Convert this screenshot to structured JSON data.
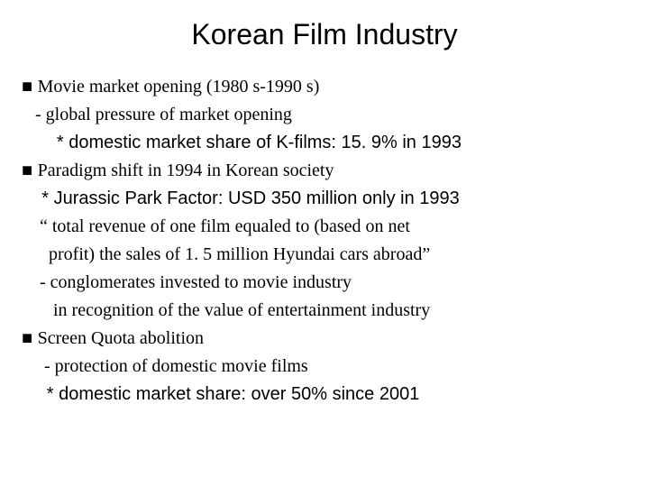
{
  "title": "Korean Film Industry",
  "title_fontsize": 32,
  "body_fontsize": 20,
  "line_height": 1.55,
  "background_color": "#ffffff",
  "text_color": "#000000",
  "lines": [
    {
      "prefix": "■ ",
      "text": "Movie market opening (1980 s-1990 s)",
      "font": "serif",
      "indent": 0
    },
    {
      "prefix": "",
      "text": "   - global pressure of market opening",
      "font": "serif",
      "indent": 0
    },
    {
      "prefix": "",
      "text": "       * domestic market share of K-films: 15. 9% in 1993",
      "font": "sans",
      "indent": 0
    },
    {
      "prefix": "■ ",
      "text": "Paradigm shift in 1994 in Korean society",
      "font": "serif",
      "indent": 0
    },
    {
      "prefix": "",
      "text": "    * Jurassic Park Factor: USD 350 million only in 1993",
      "font": "sans",
      "indent": 0
    },
    {
      "prefix": "",
      "text": "    “ total revenue of one film equaled to (based on net",
      "font": "serif",
      "indent": 0
    },
    {
      "prefix": "",
      "text": "      profit) the sales of 1. 5 million Hyundai cars abroad”",
      "font": "serif",
      "indent": 0
    },
    {
      "prefix": "",
      "text": "    - conglomerates invested to movie industry",
      "font": "serif",
      "indent": 0
    },
    {
      "prefix": "",
      "text": "       in recognition of the value of entertainment industry",
      "font": "serif",
      "indent": 0
    },
    {
      "prefix": "■ ",
      "text": "Screen Quota abolition",
      "font": "serif",
      "indent": 0
    },
    {
      "prefix": "",
      "text": "     - protection of domestic movie films",
      "font": "serif",
      "indent": 0
    },
    {
      "prefix": "",
      "text": "     * domestic market share: over 50% since 2001",
      "font": "sans",
      "indent": 0
    }
  ]
}
